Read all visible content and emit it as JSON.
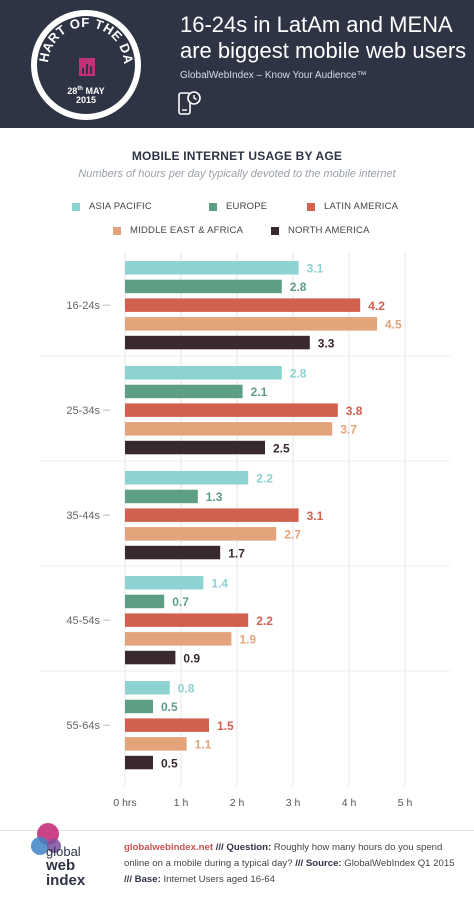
{
  "header": {
    "title": "16-24s in LatAm and MENA are biggest mobile web users",
    "subtitle": "GlobalWebIndex – Know Your Audience™",
    "badge_text": "CHART OF THE DAY",
    "badge_date_day": "28",
    "badge_date_suffix": "th",
    "badge_date_month": "MAY",
    "badge_date_year": "2015",
    "phone_icon": "phone-clock-icon"
  },
  "chart_data": {
    "type": "bar",
    "orientation": "horizontal",
    "title": "MOBILE INTERNET USAGE BY AGE",
    "subtitle": "Numbers of hours per day typically devoted to the mobile internet",
    "categories": [
      "16-24s",
      "25-34s",
      "35-44s",
      "45-54s",
      "55-64s"
    ],
    "series": [
      {
        "name": "ASIA PACIFIC",
        "color": "#8dd3d1",
        "values": [
          3.1,
          2.8,
          2.2,
          1.4,
          0.8
        ]
      },
      {
        "name": "EUROPE",
        "color": "#5e9e84",
        "values": [
          2.8,
          2.1,
          1.3,
          0.7,
          0.5
        ]
      },
      {
        "name": "LATIN AMERICA",
        "color": "#d2604f",
        "values": [
          4.2,
          3.8,
          3.1,
          2.2,
          1.5
        ]
      },
      {
        "name": "MIDDLE EAST & AFRICA",
        "color": "#e3a47b",
        "values": [
          4.5,
          3.7,
          2.7,
          1.9,
          1.1
        ]
      },
      {
        "name": "NORTH AMERICA",
        "color": "#3a2830",
        "values": [
          3.3,
          2.5,
          1.7,
          0.9,
          0.5
        ]
      }
    ],
    "xlim": [
      0,
      5
    ],
    "xticks": [
      "0 hrs",
      "1 h",
      "2 h",
      "3 h",
      "4 h",
      "5 h"
    ],
    "grid": true,
    "legend": "top"
  },
  "footer": {
    "logo_line1": "global",
    "logo_line2": "web",
    "logo_line3": "index",
    "site": "globalwebindex.net",
    "sep": "///",
    "question_label": "Question:",
    "question": "Roughly how many hours do you spend online on a mobile during a typical day?",
    "source_label": "Source:",
    "source": "GlobalWebIndex Q1 2015",
    "base_label": "Base:",
    "base": "Internet Users aged 16-64"
  }
}
